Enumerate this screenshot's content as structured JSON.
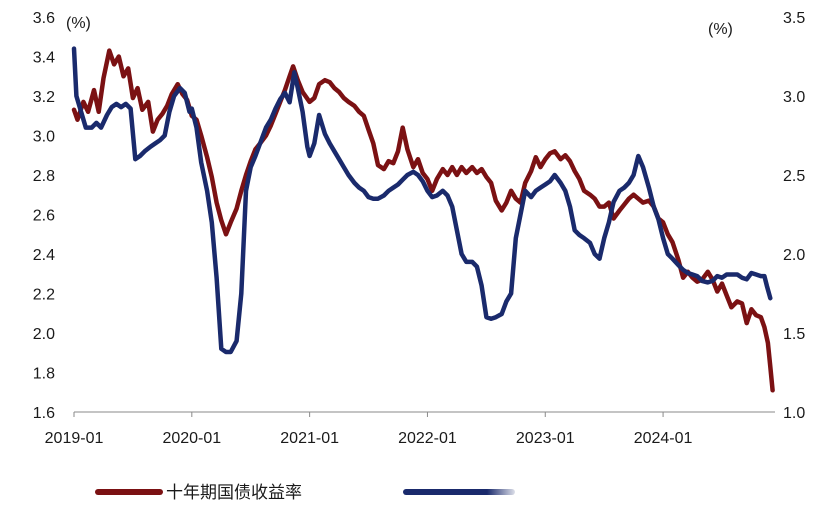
{
  "chart_data": {
    "type": "line",
    "left_unit": "(%)",
    "right_unit": "(%)",
    "left_axis": {
      "ylim": [
        1.6,
        3.6
      ],
      "ticks": [
        "1.6",
        "1.8",
        "2.0",
        "2.2",
        "2.4",
        "2.6",
        "2.8",
        "3.0",
        "3.2",
        "3.4",
        "3.6"
      ]
    },
    "right_axis": {
      "ylim": [
        1.0,
        3.5
      ],
      "ticks": [
        "1.0",
        "1.5",
        "2.0",
        "2.5",
        "3.0",
        "3.5"
      ]
    },
    "x_ticks": [
      "2019-01",
      "2020-01",
      "2021-01",
      "2022-01",
      "2023-01",
      "2024-01"
    ],
    "xlim": [
      2019.0,
      2024.95
    ],
    "grid": false,
    "legend_position": "bottom",
    "series": [
      {
        "name": "十年期国债收益率",
        "axis": "left",
        "color": "#7b1113",
        "points": [
          [
            2019.0,
            3.13
          ],
          [
            2019.03,
            3.08
          ],
          [
            2019.08,
            3.17
          ],
          [
            2019.12,
            3.12
          ],
          [
            2019.17,
            3.23
          ],
          [
            2019.21,
            3.12
          ],
          [
            2019.25,
            3.29
          ],
          [
            2019.3,
            3.43
          ],
          [
            2019.34,
            3.36
          ],
          [
            2019.38,
            3.4
          ],
          [
            2019.42,
            3.3
          ],
          [
            2019.46,
            3.34
          ],
          [
            2019.5,
            3.19
          ],
          [
            2019.54,
            3.24
          ],
          [
            2019.58,
            3.13
          ],
          [
            2019.63,
            3.17
          ],
          [
            2019.67,
            3.02
          ],
          [
            2019.71,
            3.08
          ],
          [
            2019.75,
            3.11
          ],
          [
            2019.79,
            3.15
          ],
          [
            2019.83,
            3.21
          ],
          [
            2019.88,
            3.26
          ],
          [
            2019.92,
            3.21
          ],
          [
            2019.96,
            3.18
          ],
          [
            2020.0,
            3.1
          ],
          [
            2020.04,
            3.08
          ],
          [
            2020.08,
            3.0
          ],
          [
            2020.13,
            2.89
          ],
          [
            2020.17,
            2.79
          ],
          [
            2020.21,
            2.66
          ],
          [
            2020.25,
            2.57
          ],
          [
            2020.29,
            2.5
          ],
          [
            2020.33,
            2.56
          ],
          [
            2020.38,
            2.63
          ],
          [
            2020.42,
            2.72
          ],
          [
            2020.46,
            2.8
          ],
          [
            2020.5,
            2.87
          ],
          [
            2020.54,
            2.93
          ],
          [
            2020.58,
            2.96
          ],
          [
            2020.63,
            3.0
          ],
          [
            2020.67,
            3.05
          ],
          [
            2020.71,
            3.11
          ],
          [
            2020.75,
            3.17
          ],
          [
            2020.79,
            3.23
          ],
          [
            2020.83,
            3.3
          ],
          [
            2020.86,
            3.35
          ],
          [
            2020.9,
            3.28
          ],
          [
            2020.94,
            3.22
          ],
          [
            2021.0,
            3.17
          ],
          [
            2021.04,
            3.19
          ],
          [
            2021.08,
            3.26
          ],
          [
            2021.13,
            3.28
          ],
          [
            2021.17,
            3.27
          ],
          [
            2021.21,
            3.24
          ],
          [
            2021.25,
            3.22
          ],
          [
            2021.29,
            3.19
          ],
          [
            2021.33,
            3.17
          ],
          [
            2021.38,
            3.15
          ],
          [
            2021.42,
            3.12
          ],
          [
            2021.46,
            3.1
          ],
          [
            2021.5,
            3.03
          ],
          [
            2021.54,
            2.96
          ],
          [
            2021.58,
            2.85
          ],
          [
            2021.63,
            2.83
          ],
          [
            2021.67,
            2.87
          ],
          [
            2021.71,
            2.86
          ],
          [
            2021.75,
            2.92
          ],
          [
            2021.79,
            3.04
          ],
          [
            2021.83,
            2.93
          ],
          [
            2021.88,
            2.84
          ],
          [
            2021.92,
            2.88
          ],
          [
            2021.96,
            2.81
          ],
          [
            2022.0,
            2.78
          ],
          [
            2022.04,
            2.72
          ],
          [
            2022.08,
            2.78
          ],
          [
            2022.13,
            2.83
          ],
          [
            2022.17,
            2.8
          ],
          [
            2022.21,
            2.84
          ],
          [
            2022.25,
            2.8
          ],
          [
            2022.29,
            2.84
          ],
          [
            2022.33,
            2.81
          ],
          [
            2022.38,
            2.84
          ],
          [
            2022.42,
            2.81
          ],
          [
            2022.46,
            2.83
          ],
          [
            2022.5,
            2.79
          ],
          [
            2022.54,
            2.76
          ],
          [
            2022.58,
            2.67
          ],
          [
            2022.63,
            2.62
          ],
          [
            2022.67,
            2.66
          ],
          [
            2022.71,
            2.72
          ],
          [
            2022.75,
            2.68
          ],
          [
            2022.79,
            2.66
          ],
          [
            2022.83,
            2.76
          ],
          [
            2022.88,
            2.82
          ],
          [
            2022.92,
            2.89
          ],
          [
            2022.96,
            2.84
          ],
          [
            2023.0,
            2.88
          ],
          [
            2023.04,
            2.91
          ],
          [
            2023.08,
            2.92
          ],
          [
            2023.13,
            2.88
          ],
          [
            2023.17,
            2.9
          ],
          [
            2023.21,
            2.87
          ],
          [
            2023.25,
            2.82
          ],
          [
            2023.29,
            2.78
          ],
          [
            2023.33,
            2.72
          ],
          [
            2023.38,
            2.7
          ],
          [
            2023.42,
            2.68
          ],
          [
            2023.46,
            2.64
          ],
          [
            2023.5,
            2.64
          ],
          [
            2023.54,
            2.66
          ],
          [
            2023.58,
            2.58
          ],
          [
            2023.63,
            2.62
          ],
          [
            2023.67,
            2.65
          ],
          [
            2023.71,
            2.68
          ],
          [
            2023.75,
            2.7
          ],
          [
            2023.79,
            2.68
          ],
          [
            2023.83,
            2.66
          ],
          [
            2023.88,
            2.67
          ],
          [
            2023.92,
            2.64
          ],
          [
            2023.96,
            2.58
          ],
          [
            2024.0,
            2.56
          ],
          [
            2024.04,
            2.5
          ],
          [
            2024.08,
            2.46
          ],
          [
            2024.13,
            2.37
          ],
          [
            2024.17,
            2.28
          ],
          [
            2024.21,
            2.31
          ],
          [
            2024.25,
            2.28
          ],
          [
            2024.29,
            2.26
          ],
          [
            2024.33,
            2.27
          ],
          [
            2024.38,
            2.31
          ],
          [
            2024.42,
            2.27
          ],
          [
            2024.46,
            2.21
          ],
          [
            2024.5,
            2.25
          ],
          [
            2024.54,
            2.19
          ],
          [
            2024.58,
            2.13
          ],
          [
            2024.63,
            2.16
          ],
          [
            2024.67,
            2.15
          ],
          [
            2024.71,
            2.05
          ],
          [
            2024.75,
            2.12
          ],
          [
            2024.79,
            2.09
          ],
          [
            2024.83,
            2.08
          ],
          [
            2024.86,
            2.03
          ],
          [
            2024.89,
            1.95
          ],
          [
            2024.91,
            1.83
          ],
          [
            2024.93,
            1.71
          ]
        ]
      },
      {
        "name": "",
        "axis": "right",
        "color": "#1a2a6c",
        "points": [
          [
            2019.0,
            3.3
          ],
          [
            2019.02,
            3.0
          ],
          [
            2019.06,
            2.9
          ],
          [
            2019.1,
            2.8
          ],
          [
            2019.15,
            2.8
          ],
          [
            2019.19,
            2.83
          ],
          [
            2019.23,
            2.8
          ],
          [
            2019.28,
            2.88
          ],
          [
            2019.32,
            2.93
          ],
          [
            2019.36,
            2.95
          ],
          [
            2019.4,
            2.93
          ],
          [
            2019.44,
            2.95
          ],
          [
            2019.48,
            2.92
          ],
          [
            2019.52,
            2.6
          ],
          [
            2019.56,
            2.62
          ],
          [
            2019.6,
            2.65
          ],
          [
            2019.65,
            2.68
          ],
          [
            2019.69,
            2.7
          ],
          [
            2019.73,
            2.72
          ],
          [
            2019.77,
            2.75
          ],
          [
            2019.81,
            2.9
          ],
          [
            2019.85,
            3.0
          ],
          [
            2019.9,
            3.05
          ],
          [
            2019.94,
            3.02
          ],
          [
            2019.98,
            2.9
          ],
          [
            2020.0,
            2.92
          ],
          [
            2020.04,
            2.8
          ],
          [
            2020.08,
            2.58
          ],
          [
            2020.13,
            2.4
          ],
          [
            2020.17,
            2.2
          ],
          [
            2020.21,
            1.85
          ],
          [
            2020.25,
            1.4
          ],
          [
            2020.29,
            1.38
          ],
          [
            2020.33,
            1.38
          ],
          [
            2020.38,
            1.45
          ],
          [
            2020.42,
            1.75
          ],
          [
            2020.46,
            2.4
          ],
          [
            2020.5,
            2.55
          ],
          [
            2020.54,
            2.62
          ],
          [
            2020.58,
            2.7
          ],
          [
            2020.63,
            2.8
          ],
          [
            2020.67,
            2.85
          ],
          [
            2020.71,
            2.92
          ],
          [
            2020.75,
            2.98
          ],
          [
            2020.79,
            3.02
          ],
          [
            2020.83,
            2.96
          ],
          [
            2020.87,
            3.15
          ],
          [
            2020.9,
            3.05
          ],
          [
            2020.94,
            2.9
          ],
          [
            2020.98,
            2.68
          ],
          [
            2021.0,
            2.62
          ],
          [
            2021.04,
            2.7
          ],
          [
            2021.08,
            2.88
          ],
          [
            2021.13,
            2.76
          ],
          [
            2021.17,
            2.7
          ],
          [
            2021.21,
            2.65
          ],
          [
            2021.25,
            2.6
          ],
          [
            2021.29,
            2.55
          ],
          [
            2021.33,
            2.5
          ],
          [
            2021.38,
            2.45
          ],
          [
            2021.42,
            2.42
          ],
          [
            2021.46,
            2.4
          ],
          [
            2021.5,
            2.36
          ],
          [
            2021.54,
            2.35
          ],
          [
            2021.58,
            2.35
          ],
          [
            2021.63,
            2.37
          ],
          [
            2021.67,
            2.4
          ],
          [
            2021.71,
            2.42
          ],
          [
            2021.75,
            2.44
          ],
          [
            2021.79,
            2.47
          ],
          [
            2021.83,
            2.5
          ],
          [
            2021.88,
            2.52
          ],
          [
            2021.92,
            2.5
          ],
          [
            2021.96,
            2.46
          ],
          [
            2022.0,
            2.4
          ],
          [
            2022.04,
            2.36
          ],
          [
            2022.08,
            2.37
          ],
          [
            2022.13,
            2.4
          ],
          [
            2022.17,
            2.37
          ],
          [
            2022.21,
            2.3
          ],
          [
            2022.25,
            2.15
          ],
          [
            2022.29,
            2.0
          ],
          [
            2022.33,
            1.95
          ],
          [
            2022.38,
            1.95
          ],
          [
            2022.42,
            1.92
          ],
          [
            2022.46,
            1.8
          ],
          [
            2022.5,
            1.6
          ],
          [
            2022.54,
            1.59
          ],
          [
            2022.58,
            1.6
          ],
          [
            2022.63,
            1.62
          ],
          [
            2022.67,
            1.7
          ],
          [
            2022.71,
            1.75
          ],
          [
            2022.75,
            2.1
          ],
          [
            2022.79,
            2.25
          ],
          [
            2022.83,
            2.4
          ],
          [
            2022.88,
            2.36
          ],
          [
            2022.92,
            2.4
          ],
          [
            2022.96,
            2.42
          ],
          [
            2023.0,
            2.44
          ],
          [
            2023.04,
            2.46
          ],
          [
            2023.08,
            2.5
          ],
          [
            2023.13,
            2.45
          ],
          [
            2023.17,
            2.4
          ],
          [
            2023.21,
            2.3
          ],
          [
            2023.25,
            2.15
          ],
          [
            2023.29,
            2.12
          ],
          [
            2023.33,
            2.1
          ],
          [
            2023.38,
            2.07
          ],
          [
            2023.42,
            2.0
          ],
          [
            2023.46,
            1.97
          ],
          [
            2023.5,
            2.1
          ],
          [
            2023.54,
            2.2
          ],
          [
            2023.58,
            2.33
          ],
          [
            2023.63,
            2.4
          ],
          [
            2023.67,
            2.42
          ],
          [
            2023.71,
            2.45
          ],
          [
            2023.75,
            2.5
          ],
          [
            2023.79,
            2.62
          ],
          [
            2023.83,
            2.55
          ],
          [
            2023.88,
            2.42
          ],
          [
            2023.92,
            2.3
          ],
          [
            2023.96,
            2.22
          ],
          [
            2024.0,
            2.1
          ],
          [
            2024.04,
            2.0
          ],
          [
            2024.08,
            1.97
          ],
          [
            2024.13,
            1.93
          ],
          [
            2024.17,
            1.9
          ],
          [
            2024.21,
            1.88
          ],
          [
            2024.25,
            1.87
          ],
          [
            2024.29,
            1.86
          ],
          [
            2024.33,
            1.83
          ],
          [
            2024.38,
            1.82
          ],
          [
            2024.42,
            1.83
          ],
          [
            2024.46,
            1.86
          ],
          [
            2024.5,
            1.85
          ],
          [
            2024.54,
            1.87
          ],
          [
            2024.58,
            1.87
          ],
          [
            2024.63,
            1.87
          ],
          [
            2024.67,
            1.85
          ],
          [
            2024.71,
            1.84
          ],
          [
            2024.75,
            1.88
          ],
          [
            2024.79,
            1.87
          ],
          [
            2024.83,
            1.86
          ],
          [
            2024.86,
            1.86
          ],
          [
            2024.88,
            1.8
          ],
          [
            2024.91,
            1.72
          ]
        ]
      }
    ]
  }
}
